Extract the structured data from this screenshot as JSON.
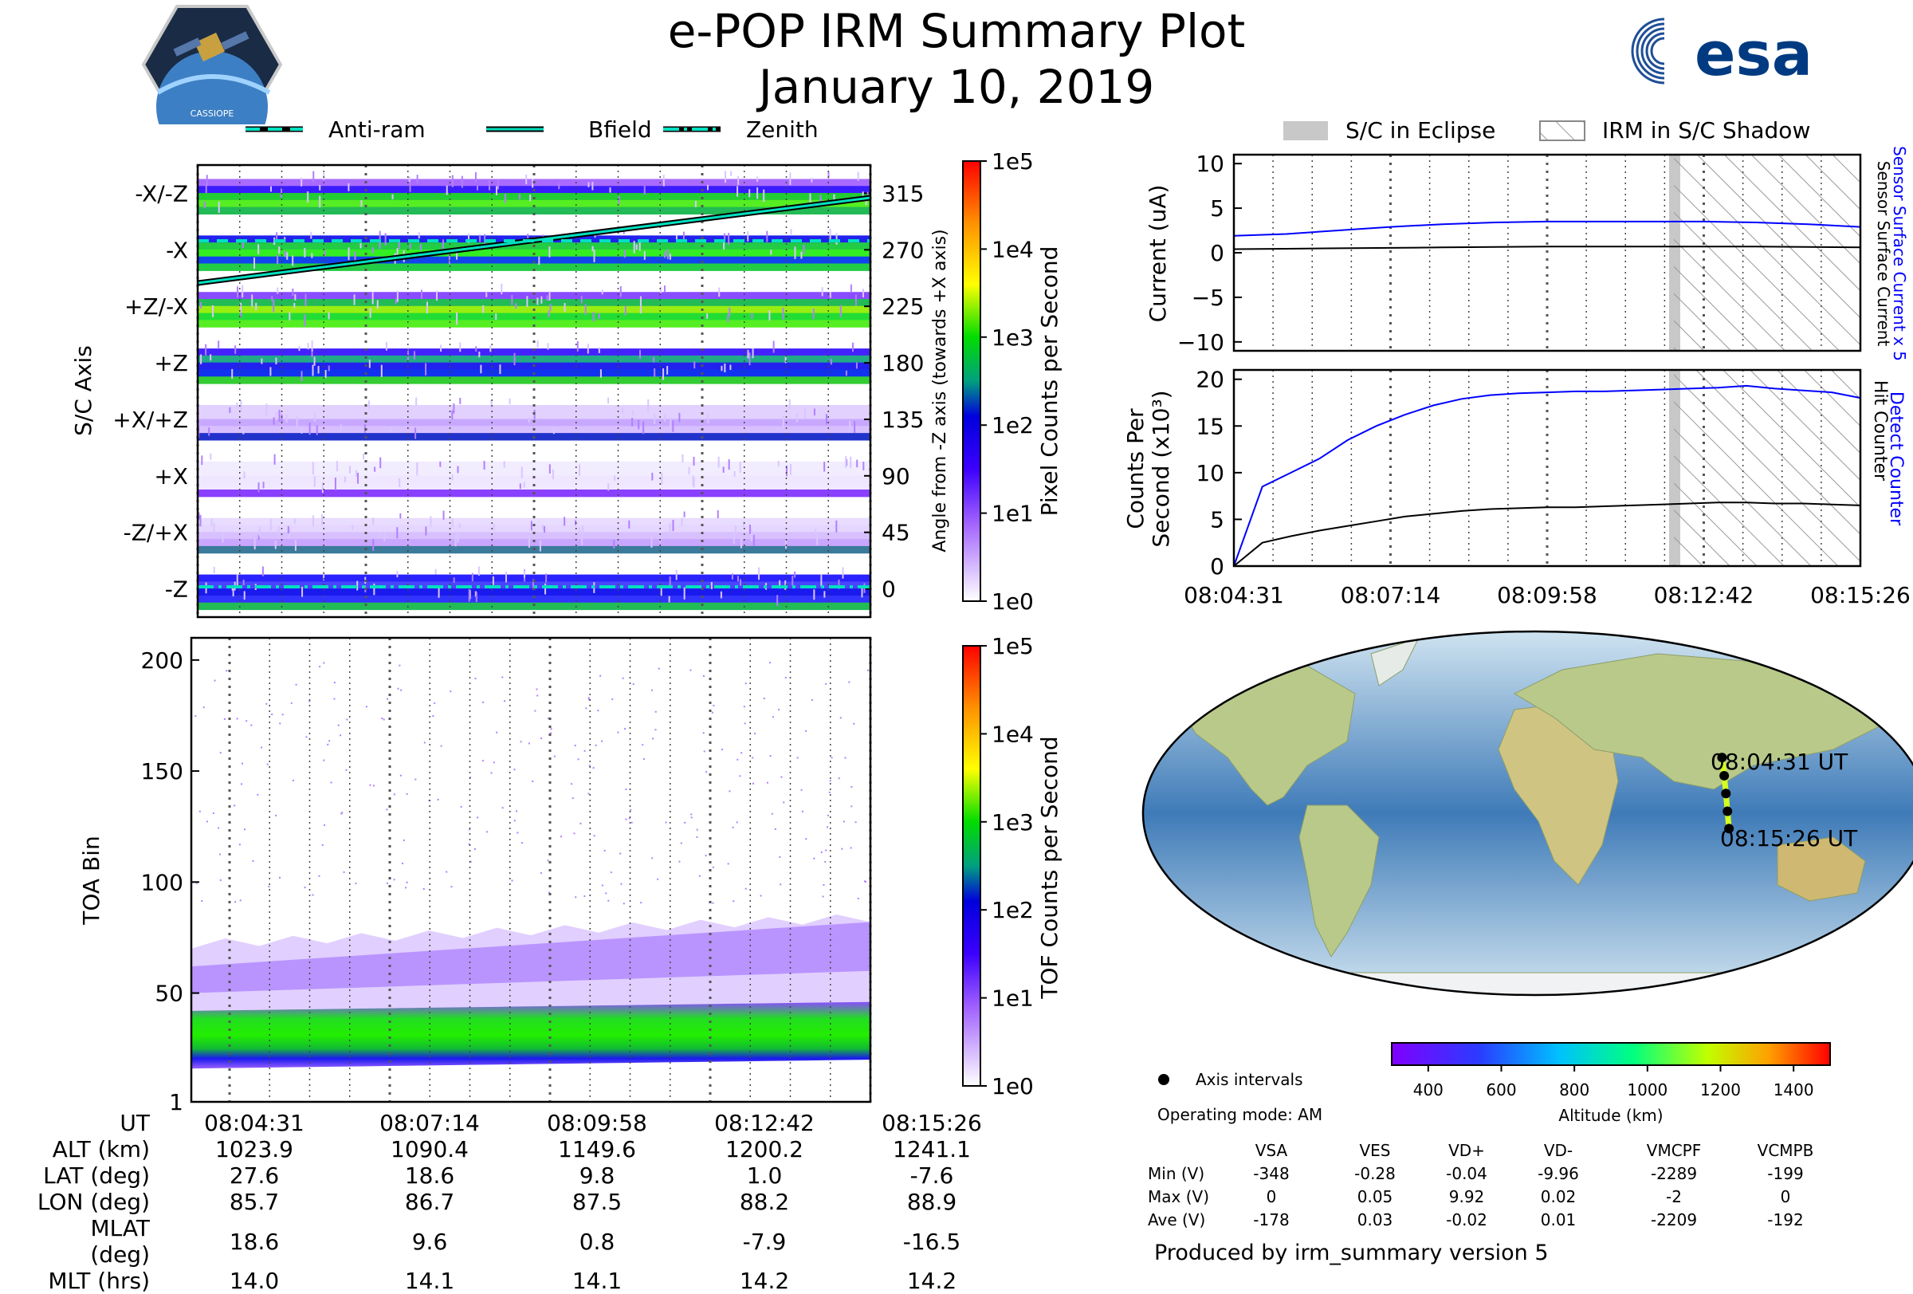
{
  "title_line1": "e-POP IRM Summary Plot",
  "title_line2": "January 10, 2019",
  "mission_logo_text": "CASSIOPE",
  "esa_logo_text": "esa",
  "colors": {
    "blue_line": "#0000ff",
    "black_line": "#000000",
    "bfield": "#000000",
    "anti_ram": "#00e0c0",
    "eclipse_gray": "#c8c8c8"
  },
  "legend_top": [
    {
      "label": "Anti-ram",
      "style": "dashed"
    },
    {
      "label": "Bfield",
      "style": "solid"
    },
    {
      "label": "Zenith",
      "style": "dashdot"
    }
  ],
  "legend_right": [
    {
      "label": "S/C in Eclipse"
    },
    {
      "label": "IRM in S/C Shadow"
    }
  ],
  "chart_data": [
    {
      "id": "pixel_counts",
      "type": "heatmap",
      "ylabel": "S/C Axis",
      "y_categories": [
        "-X/-Z",
        "-X",
        "+Z/-X",
        "+Z",
        "+X/+Z",
        "+X",
        "-Z/+X",
        "-Z"
      ],
      "right_ylabel": "Angle from -Z axis (towards +X axis)",
      "right_ticks": [
        "315",
        "270",
        "225",
        "180",
        "135",
        "90",
        "45",
        "0"
      ],
      "colorbar_label": "Pixel Counts per Second",
      "colorbar_ticks": [
        "1e0",
        "1e1",
        "1e2",
        "1e3",
        "1e4",
        "1e5"
      ],
      "bfield_angle_start": 260,
      "bfield_angle_end": 330,
      "anti_ram_angle": 285,
      "zenith_angle": 0
    },
    {
      "id": "tof_counts",
      "type": "heatmap",
      "ylabel": "TOA Bin",
      "yticks": [
        "1",
        "50",
        "100",
        "150",
        "200"
      ],
      "ylim": [
        1,
        210
      ],
      "band_center_start": 28,
      "band_center_end": 32,
      "colorbar_label": "TOF Counts per Second",
      "colorbar_ticks": [
        "1e0",
        "1e1",
        "1e2",
        "1e3",
        "1e4",
        "1e5"
      ]
    },
    {
      "id": "current",
      "type": "line",
      "ylabel": "Current (uA)",
      "yticks": [
        "10",
        "5",
        "0",
        "−5",
        "−10"
      ],
      "ylim": [
        -11,
        11
      ],
      "right_label_1": "Sensor Surface Current x 5",
      "right_label_2": "Sensor Surface Current",
      "series": [
        {
          "name": "Sensor Surface Current x 5",
          "values": [
            1.9,
            2.1,
            2.5,
            2.9,
            3.2,
            3.4,
            3.5,
            3.5,
            3.5,
            3.5,
            3.4,
            3.2,
            2.9
          ]
        },
        {
          "name": "Sensor Surface Current",
          "values": [
            0.4,
            0.45,
            0.5,
            0.55,
            0.6,
            0.65,
            0.7,
            0.7,
            0.7,
            0.7,
            0.7,
            0.65,
            0.6
          ]
        }
      ],
      "eclipse_fraction": 0.72,
      "shadow_start_fraction": 0.725
    },
    {
      "id": "counts",
      "type": "line",
      "ylabel_1": "Counts Per",
      "ylabel_2": "Second (x10³)",
      "yticks": [
        "20",
        "15",
        "10",
        "5",
        "0"
      ],
      "ylim": [
        0,
        21
      ],
      "right_label_1": "Detect Counter",
      "right_label_2": "Hit Counter",
      "xtick_labels": [
        "08:04:31",
        "08:07:14",
        "08:09:58",
        "08:12:42",
        "08:15:26"
      ],
      "series": [
        {
          "name": "Detect Counter",
          "values": [
            0,
            8.5,
            10,
            11.5,
            13.5,
            15,
            16.2,
            17.2,
            17.9,
            18.3,
            18.5,
            18.6,
            18.7,
            18.7,
            18.8,
            18.9,
            19.0,
            19.1,
            19.3,
            19.0,
            18.8,
            18.6,
            18.0
          ]
        },
        {
          "name": "Hit Counter",
          "values": [
            0,
            2.5,
            3.2,
            3.8,
            4.3,
            4.8,
            5.3,
            5.6,
            5.9,
            6.1,
            6.2,
            6.3,
            6.3,
            6.4,
            6.5,
            6.6,
            6.7,
            6.8,
            6.8,
            6.7,
            6.7,
            6.6,
            6.5
          ]
        }
      ]
    },
    {
      "id": "ground_track",
      "type": "scatter",
      "label_start": "08:04:31 UT",
      "label_end": "08:15:26 UT",
      "lon": [
        85.7,
        86.7,
        87.5,
        88.2,
        88.9
      ],
      "lat": [
        27.6,
        18.6,
        9.8,
        1.0,
        -7.6
      ],
      "legend_label": "Axis intervals",
      "operating_mode": "Operating mode: AM",
      "altitude_label": "Altitude (km)",
      "altitude_ticks": [
        "400",
        "600",
        "800",
        "1000",
        "1200",
        "1400"
      ]
    }
  ],
  "volt_table": {
    "columns": [
      "VSA",
      "VES",
      "VD+",
      "VD-",
      "VMCPF",
      "VCMPB"
    ],
    "rows": [
      {
        "label": "Min (V)",
        "values": [
          "-348",
          "-0.28",
          "-0.04",
          "-9.96",
          "-2289",
          "-199"
        ]
      },
      {
        "label": "Max (V)",
        "values": [
          "0",
          "0.05",
          "9.92",
          "0.02",
          "-2",
          "0"
        ]
      },
      {
        "label": "Ave (V)",
        "values": [
          "-178",
          "0.03",
          "-0.02",
          "0.01",
          "-2209",
          "-192"
        ]
      }
    ]
  },
  "footer": "Produced by irm_summary version 5",
  "bottom_table": {
    "rows": [
      {
        "label": "UT",
        "values": [
          "08:04:31",
          "08:07:14",
          "08:09:58",
          "08:12:42",
          "08:15:26"
        ]
      },
      {
        "label": "ALT (km)",
        "values": [
          "1023.9",
          "1090.4",
          "1149.6",
          "1200.2",
          "1241.1"
        ]
      },
      {
        "label": "LAT (deg)",
        "values": [
          "27.6",
          "18.6",
          "9.8",
          "1.0",
          "-7.6"
        ]
      },
      {
        "label": "LON (deg)",
        "values": [
          "85.7",
          "86.7",
          "87.5",
          "88.2",
          "88.9"
        ]
      },
      {
        "label": "MLAT (deg)",
        "values": [
          "18.6",
          "9.6",
          "0.8",
          "-7.9",
          "-16.5"
        ]
      },
      {
        "label": "MLT (hrs)",
        "values": [
          "14.0",
          "14.1",
          "14.1",
          "14.2",
          "14.2"
        ]
      }
    ]
  }
}
